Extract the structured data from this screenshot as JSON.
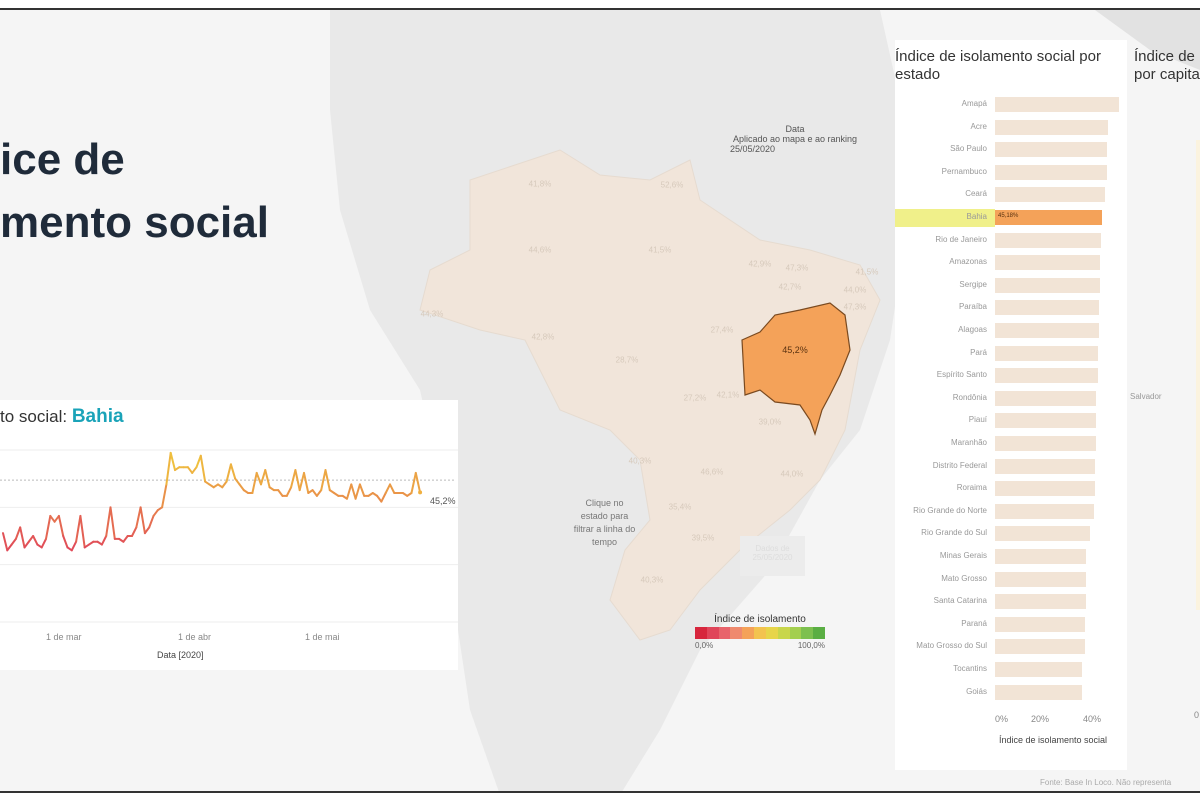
{
  "title": {
    "line1": "ice de",
    "line2": "mento social"
  },
  "line_chart": {
    "title_prefix": "to social:",
    "title_state": "Bahia",
    "end_label": "45,2%",
    "x_ticks": [
      "1 de mar",
      "1 de abr",
      "1 de mai"
    ],
    "xlabel": "Data [2020]"
  },
  "chart_data": {
    "type": "line",
    "xlabel": "Data [2020]",
    "ylim": [
      0,
      60
    ],
    "grid": true,
    "series": [
      {
        "x_start": "2020-02-18",
        "x_end": "2020-05-25",
        "values": [
          31,
          25,
          27,
          29,
          33,
          26,
          28,
          30,
          27,
          26,
          29,
          37,
          35,
          37,
          30,
          26,
          25,
          28,
          37,
          26,
          27,
          28,
          28,
          27,
          30,
          40,
          29,
          29,
          28,
          30,
          30,
          33,
          40,
          31,
          33,
          37,
          39,
          40,
          48,
          59,
          53,
          54,
          54,
          54,
          52,
          54,
          58,
          49,
          48,
          47,
          48,
          47,
          49,
          55,
          50,
          48,
          46,
          45,
          45,
          52,
          48,
          53,
          47,
          46,
          46,
          44,
          44,
          47,
          53,
          46,
          52,
          45,
          46,
          44,
          46,
          53,
          46,
          45,
          44,
          44,
          43,
          48,
          43,
          48,
          44,
          44,
          45,
          44,
          42,
          45,
          48,
          45,
          45,
          45,
          44,
          45,
          52,
          45.2
        ]
      }
    ]
  },
  "map": {
    "filter_title": "Data",
    "filter_sub": "Aplicado ao mapa e ao ranking",
    "filter_value": "25/05/2020",
    "selected_value": "45,2%",
    "hint": "Clique no estado para filtrar a linha do tempo",
    "data_note": "Dados de 25/05/2020",
    "labels": [
      "41,8%",
      "52,6%",
      "44,6%",
      "41,5%",
      "42,9%",
      "47,3%",
      "41,5%",
      "42,7%",
      "44,0%",
      "47,3%",
      "44,3%",
      "42,8%",
      "27,4%",
      "28,7%",
      "27,2%",
      "42,1%",
      "39,0%",
      "40,3%",
      "46,6%",
      "44,0%",
      "35,4%",
      "39,5%",
      "40,3%"
    ],
    "legend": {
      "title": "Índice de isolamento",
      "min": "0,0%",
      "max": "100,0%",
      "colors": [
        "#d7263d",
        "#e0455a",
        "#e8636b",
        "#ef8a6e",
        "#f4a259",
        "#f3c34f",
        "#e7d54a",
        "#c8d64b",
        "#a3cf4f",
        "#7dc04f",
        "#5aae43"
      ]
    }
  },
  "ranking": {
    "title": "Índice de isolamento social por estado",
    "xlabel": "Índice de isolamento social",
    "x_ticks": [
      "0%",
      "20%",
      "40%"
    ],
    "selected": "Bahia",
    "selected_value": "45,18%",
    "highlight": "#f4a259",
    "bar_color": "#f2e4d6",
    "states": [
      [
        "Amapá",
        52
      ],
      [
        "Acre",
        47.6
      ],
      [
        "São Paulo",
        47.2
      ],
      [
        "Pernambuco",
        47.2
      ],
      [
        "Ceará",
        46.3
      ],
      [
        "Bahia",
        45.18
      ],
      [
        "Rio de Janeiro",
        44.6
      ],
      [
        "Amazonas",
        44.3
      ],
      [
        "Sergipe",
        44.3
      ],
      [
        "Paraíba",
        43.9
      ],
      [
        "Alagoas",
        43.9
      ],
      [
        "Pará",
        43.5
      ],
      [
        "Espírito Santo",
        43.5
      ],
      [
        "Rondônia",
        42.7
      ],
      [
        "Piauí",
        42.7
      ],
      [
        "Maranhão",
        42.7
      ],
      [
        "Distrito Federal",
        42.3
      ],
      [
        "Roraima",
        41.9
      ],
      [
        "Rio Grande do Norte",
        41.5
      ],
      [
        "Rio Grande do Sul",
        40.2
      ],
      [
        "Minas Gerais",
        38.5
      ],
      [
        "Mato Grosso",
        38.5
      ],
      [
        "Santa Catarina",
        38.5
      ],
      [
        "Paraná",
        38.1
      ],
      [
        "Mato Grosso do Sul",
        38.1
      ],
      [
        "Tocantins",
        36.8
      ],
      [
        "Goiás",
        36.8
      ]
    ]
  },
  "capitals": {
    "title1": "Índice de",
    "title2": "por capita",
    "label": "Salvador",
    "tick": "0"
  },
  "footer": "Fonte: Base In Loco. Não representa"
}
